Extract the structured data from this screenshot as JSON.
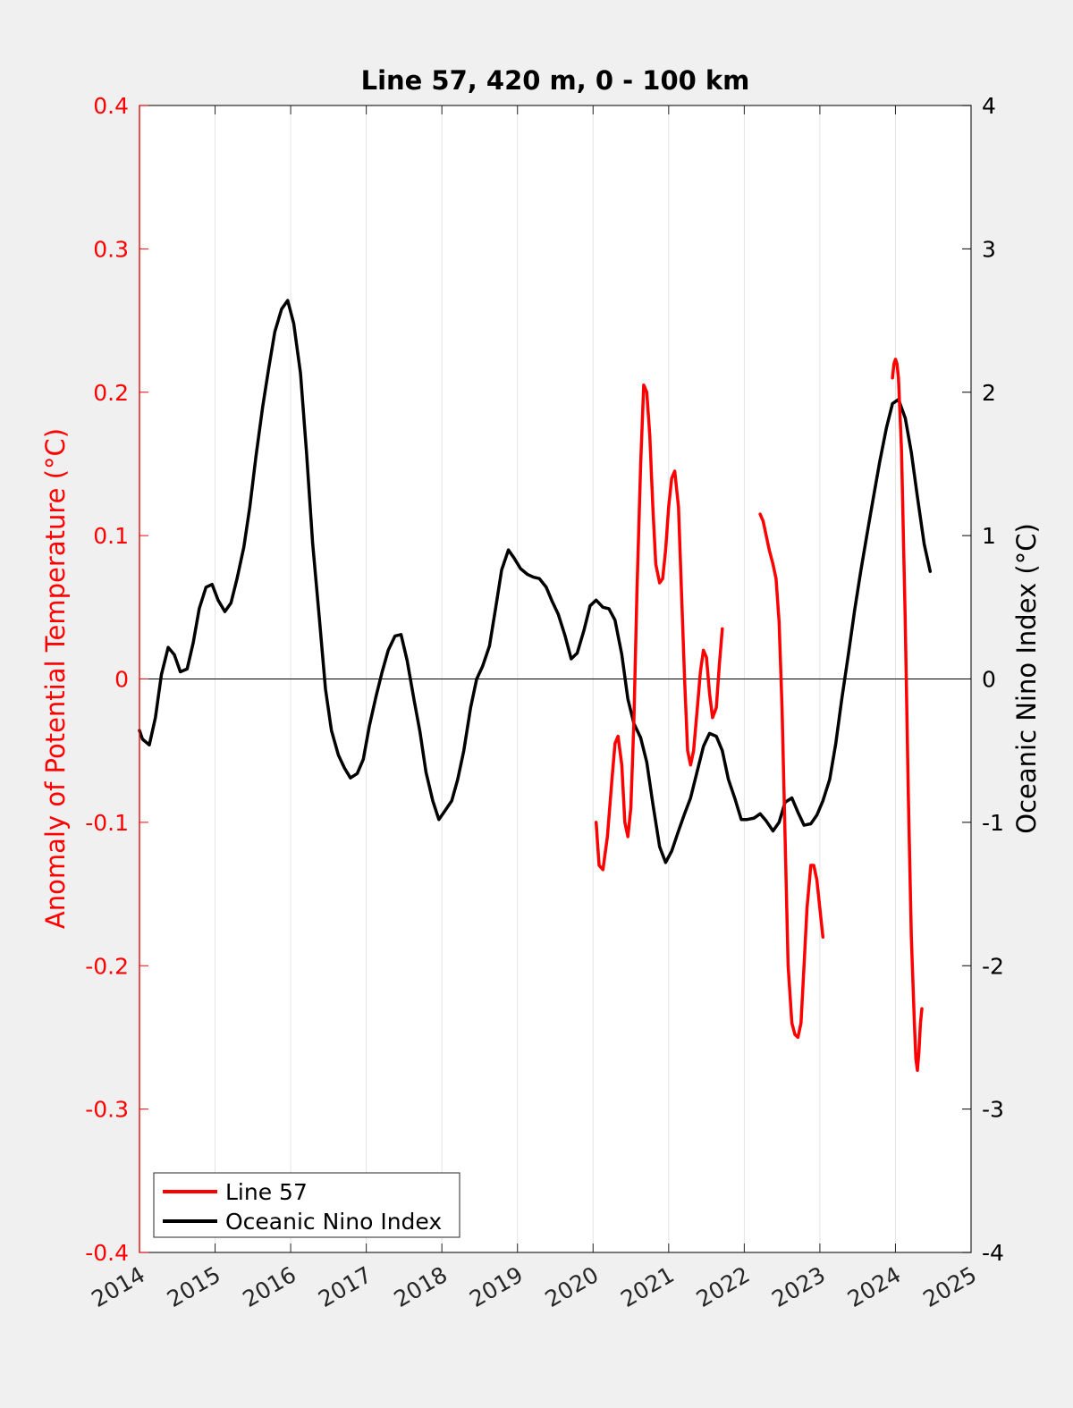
{
  "chart_data": {
    "type": "line",
    "title": "Line 57, 420 m, 0 - 100 km",
    "xlabel": "",
    "ylabel_left": "Anomaly of Potential Temperature (°C)",
    "ylabel_right": "Oceanic Nino Index (°C)",
    "xlim": [
      2014,
      2025
    ],
    "ylim_left": [
      -0.4,
      0.4
    ],
    "ylim_right": [
      -4,
      4
    ],
    "x_tick_labels": [
      "2014",
      "2015",
      "2016",
      "2017",
      "2018",
      "2019",
      "2020",
      "2021",
      "2022",
      "2023",
      "2024",
      "2025"
    ],
    "y_left_tick_labels": [
      "-0.4",
      "-0.3",
      "-0.2",
      "-0.1",
      "0",
      "0.1",
      "0.2",
      "0.3",
      "0.4"
    ],
    "y_right_tick_labels": [
      "-4",
      "-3",
      "-2",
      "-1",
      "0",
      "1",
      "2",
      "3",
      "4"
    ],
    "grid": "vertical",
    "legend_position": "bottom-left",
    "colors": {
      "line57": "#ff0000",
      "oni": "#000000",
      "left_axis": "#ff0000",
      "right_axis": "#000000"
    },
    "series": [
      {
        "name": "Line 57",
        "axis": "left",
        "segments": [
          [
            [
              2020.04,
              -0.1
            ],
            [
              2020.08,
              -0.13
            ],
            [
              2020.13,
              -0.133
            ],
            [
              2020.19,
              -0.11
            ],
            [
              2020.25,
              -0.07
            ],
            [
              2020.29,
              -0.045
            ],
            [
              2020.33,
              -0.04
            ],
            [
              2020.38,
              -0.06
            ],
            [
              2020.42,
              -0.1
            ],
            [
              2020.46,
              -0.11
            ],
            [
              2020.5,
              -0.09
            ],
            [
              2020.54,
              -0.03
            ],
            [
              2020.58,
              0.06
            ],
            [
              2020.63,
              0.15
            ],
            [
              2020.67,
              0.205
            ],
            [
              2020.71,
              0.2
            ],
            [
              2020.75,
              0.17
            ],
            [
              2020.79,
              0.12
            ],
            [
              2020.83,
              0.08
            ],
            [
              2020.88,
              0.067
            ],
            [
              2020.92,
              0.07
            ],
            [
              2020.96,
              0.09
            ],
            [
              2021.0,
              0.12
            ],
            [
              2021.04,
              0.14
            ],
            [
              2021.08,
              0.145
            ],
            [
              2021.13,
              0.12
            ],
            [
              2021.17,
              0.06
            ],
            [
              2021.21,
              0.0
            ],
            [
              2021.25,
              -0.05
            ],
            [
              2021.29,
              -0.06
            ],
            [
              2021.33,
              -0.05
            ],
            [
              2021.38,
              -0.02
            ],
            [
              2021.42,
              0.005
            ],
            [
              2021.46,
              0.02
            ],
            [
              2021.5,
              0.015
            ],
            [
              2021.54,
              -0.01
            ],
            [
              2021.58,
              -0.027
            ],
            [
              2021.63,
              -0.02
            ],
            [
              2021.67,
              0.01
            ],
            [
              2021.71,
              0.035
            ]
          ],
          [
            [
              2022.21,
              0.115
            ],
            [
              2022.25,
              0.11
            ],
            [
              2022.29,
              0.1
            ],
            [
              2022.33,
              0.09
            ],
            [
              2022.38,
              0.08
            ],
            [
              2022.42,
              0.07
            ],
            [
              2022.46,
              0.04
            ],
            [
              2022.5,
              -0.02
            ],
            [
              2022.54,
              -0.11
            ],
            [
              2022.58,
              -0.2
            ],
            [
              2022.63,
              -0.24
            ],
            [
              2022.67,
              -0.248
            ],
            [
              2022.71,
              -0.25
            ],
            [
              2022.75,
              -0.24
            ],
            [
              2022.79,
              -0.2
            ],
            [
              2022.83,
              -0.16
            ],
            [
              2022.88,
              -0.13
            ],
            [
              2022.92,
              -0.13
            ],
            [
              2022.96,
              -0.14
            ],
            [
              2023.0,
              -0.16
            ],
            [
              2023.04,
              -0.18
            ]
          ],
          [
            [
              2023.96,
              0.21
            ],
            [
              2023.98,
              0.22
            ],
            [
              2024.0,
              0.223
            ],
            [
              2024.02,
              0.22
            ],
            [
              2024.04,
              0.21
            ],
            [
              2024.08,
              0.16
            ],
            [
              2024.13,
              0.04
            ],
            [
              2024.17,
              -0.08
            ],
            [
              2024.21,
              -0.18
            ],
            [
              2024.25,
              -0.24
            ],
            [
              2024.27,
              -0.265
            ],
            [
              2024.29,
              -0.273
            ],
            [
              2024.31,
              -0.26
            ],
            [
              2024.33,
              -0.24
            ],
            [
              2024.35,
              -0.23
            ]
          ]
        ]
      },
      {
        "name": "Oceanic Nino Index",
        "axis": "right",
        "segments": [
          [
            [
              2014.0,
              -0.36
            ],
            [
              2014.04,
              -0.42
            ],
            [
              2014.13,
              -0.46
            ],
            [
              2014.21,
              -0.27
            ],
            [
              2014.29,
              0.03
            ],
            [
              2014.38,
              0.22
            ],
            [
              2014.46,
              0.17
            ],
            [
              2014.54,
              0.05
            ],
            [
              2014.63,
              0.07
            ],
            [
              2014.71,
              0.25
            ],
            [
              2014.79,
              0.49
            ],
            [
              2014.88,
              0.64
            ],
            [
              2014.96,
              0.66
            ],
            [
              2015.04,
              0.55
            ],
            [
              2015.13,
              0.47
            ],
            [
              2015.21,
              0.53
            ],
            [
              2015.29,
              0.7
            ],
            [
              2015.38,
              0.92
            ],
            [
              2015.46,
              1.2
            ],
            [
              2015.54,
              1.55
            ],
            [
              2015.63,
              1.9
            ],
            [
              2015.71,
              2.17
            ],
            [
              2015.79,
              2.42
            ],
            [
              2015.88,
              2.58
            ],
            [
              2015.96,
              2.64
            ],
            [
              2016.04,
              2.48
            ],
            [
              2016.13,
              2.13
            ],
            [
              2016.21,
              1.58
            ],
            [
              2016.29,
              0.95
            ],
            [
              2016.38,
              0.42
            ],
            [
              2016.46,
              -0.07
            ],
            [
              2016.54,
              -0.36
            ],
            [
              2016.63,
              -0.53
            ],
            [
              2016.71,
              -0.62
            ],
            [
              2016.79,
              -0.69
            ],
            [
              2016.88,
              -0.66
            ],
            [
              2016.96,
              -0.56
            ],
            [
              2017.04,
              -0.33
            ],
            [
              2017.13,
              -0.12
            ],
            [
              2017.21,
              0.05
            ],
            [
              2017.29,
              0.2
            ],
            [
              2017.38,
              0.3
            ],
            [
              2017.46,
              0.31
            ],
            [
              2017.54,
              0.13
            ],
            [
              2017.63,
              -0.14
            ],
            [
              2017.71,
              -0.37
            ],
            [
              2017.79,
              -0.65
            ],
            [
              2017.88,
              -0.85
            ],
            [
              2017.96,
              -0.98
            ],
            [
              2018.04,
              -0.92
            ],
            [
              2018.13,
              -0.85
            ],
            [
              2018.21,
              -0.7
            ],
            [
              2018.29,
              -0.5
            ],
            [
              2018.38,
              -0.2
            ],
            [
              2018.46,
              0.0
            ],
            [
              2018.54,
              0.09
            ],
            [
              2018.63,
              0.23
            ],
            [
              2018.71,
              0.49
            ],
            [
              2018.79,
              0.76
            ],
            [
              2018.88,
              0.9
            ],
            [
              2018.96,
              0.84
            ],
            [
              2019.04,
              0.77
            ],
            [
              2019.13,
              0.73
            ],
            [
              2019.21,
              0.71
            ],
            [
              2019.29,
              0.7
            ],
            [
              2019.38,
              0.64
            ],
            [
              2019.46,
              0.54
            ],
            [
              2019.54,
              0.45
            ],
            [
              2019.63,
              0.3
            ],
            [
              2019.71,
              0.14
            ],
            [
              2019.79,
              0.18
            ],
            [
              2019.88,
              0.34
            ],
            [
              2019.96,
              0.51
            ],
            [
              2020.04,
              0.55
            ],
            [
              2020.13,
              0.5
            ],
            [
              2020.21,
              0.49
            ],
            [
              2020.29,
              0.41
            ],
            [
              2020.38,
              0.17
            ],
            [
              2020.46,
              -0.14
            ],
            [
              2020.54,
              -0.31
            ],
            [
              2020.63,
              -0.41
            ],
            [
              2020.71,
              -0.58
            ],
            [
              2020.79,
              -0.87
            ],
            [
              2020.88,
              -1.17
            ],
            [
              2020.96,
              -1.28
            ],
            [
              2021.04,
              -1.2
            ],
            [
              2021.13,
              -1.06
            ],
            [
              2021.21,
              -0.94
            ],
            [
              2021.29,
              -0.83
            ],
            [
              2021.38,
              -0.64
            ],
            [
              2021.46,
              -0.47
            ],
            [
              2021.54,
              -0.38
            ],
            [
              2021.63,
              -0.4
            ],
            [
              2021.71,
              -0.5
            ],
            [
              2021.79,
              -0.7
            ],
            [
              2021.88,
              -0.84
            ],
            [
              2021.96,
              -0.98
            ],
            [
              2022.04,
              -0.98
            ],
            [
              2022.13,
              -0.97
            ],
            [
              2022.21,
              -0.94
            ],
            [
              2022.29,
              -0.99
            ],
            [
              2022.38,
              -1.06
            ],
            [
              2022.46,
              -1.0
            ],
            [
              2022.54,
              -0.86
            ],
            [
              2022.63,
              -0.83
            ],
            [
              2022.71,
              -0.93
            ],
            [
              2022.79,
              -1.02
            ],
            [
              2022.88,
              -1.01
            ],
            [
              2022.96,
              -0.95
            ],
            [
              2023.04,
              -0.85
            ],
            [
              2023.13,
              -0.7
            ],
            [
              2023.21,
              -0.45
            ],
            [
              2023.29,
              -0.14
            ],
            [
              2023.38,
              0.18
            ],
            [
              2023.46,
              0.48
            ],
            [
              2023.54,
              0.75
            ],
            [
              2023.63,
              1.03
            ],
            [
              2023.71,
              1.27
            ],
            [
              2023.79,
              1.51
            ],
            [
              2023.88,
              1.75
            ],
            [
              2023.96,
              1.92
            ],
            [
              2024.04,
              1.95
            ],
            [
              2024.13,
              1.82
            ],
            [
              2024.21,
              1.58
            ],
            [
              2024.29,
              1.27
            ],
            [
              2024.38,
              0.94
            ],
            [
              2024.46,
              0.75
            ]
          ]
        ]
      }
    ]
  }
}
